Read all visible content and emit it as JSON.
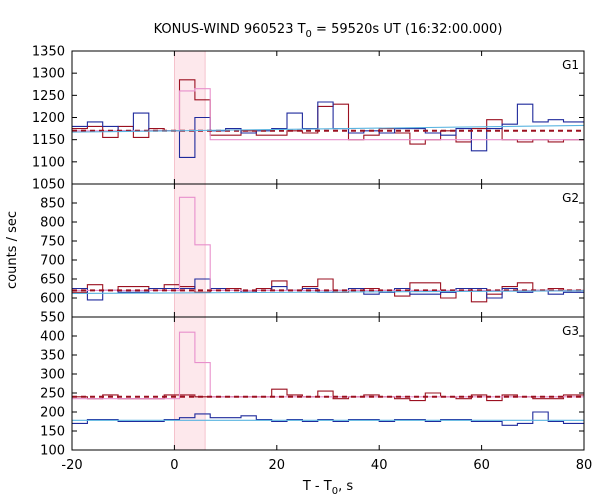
{
  "chart_data": {
    "type": "line",
    "title_main": "KONUS-WIND 960523 T",
    "title_sub": "0",
    "title_rest": " = 59520s UT (16:32:00.000)",
    "xlabel_main": "T - T",
    "xlabel_sub": "0",
    "xlabel_rest": ", s",
    "ylabel": "counts / sec",
    "xlim": [
      -20,
      80
    ],
    "x_ticks": [
      "-20",
      "0",
      "20",
      "40",
      "60",
      "80"
    ],
    "x_tick_values": [
      -20,
      0,
      20,
      40,
      60,
      80
    ],
    "bin_edges": [
      -20,
      -17,
      -14,
      -11,
      -8,
      -5,
      -2,
      1,
      4,
      7,
      10,
      13,
      16,
      19,
      22,
      25,
      28,
      31,
      34,
      37,
      40,
      43,
      46,
      49,
      52,
      55,
      58,
      61,
      64,
      67,
      70,
      73,
      76,
      80
    ],
    "highlight": {
      "x_range": [
        0,
        6
      ],
      "color": "#fde8ec"
    },
    "colors": {
      "red": "#9b1020",
      "blue": "#1f2a9c",
      "pink": "#e890cc",
      "cyan": "#5ab4e0"
    },
    "panels": [
      {
        "label": "G1",
        "ylim": [
          1050,
          1350
        ],
        "y_ticks": [
          "1050",
          "1100",
          "1150",
          "1200",
          "1250",
          "1300",
          "1350"
        ],
        "y_tick_values": [
          1050,
          1100,
          1150,
          1200,
          1250,
          1300,
          1350
        ],
        "series": [
          {
            "color": "red",
            "values": [
              1175,
              1180,
              1155,
              1180,
              1155,
              1175,
              1170,
              1285,
              1240,
              1160,
              1160,
              1170,
              1160,
              1160,
              1170,
              1165,
              1225,
              1230,
              1150,
              1160,
              1175,
              1165,
              1140,
              1150,
              1170,
              1145,
              1175,
              1195,
              1150,
              1145,
              1150,
              1145,
              1150
            ]
          },
          {
            "color": "blue",
            "values": [
              1180,
              1190,
              1180,
              1170,
              1210,
              1170,
              1170,
              1110,
              1200,
              1170,
              1175,
              1165,
              1170,
              1175,
              1210,
              1175,
              1235,
              1175,
              1165,
              1170,
              1165,
              1175,
              1175,
              1165,
              1160,
              1175,
              1125,
              1175,
              1185,
              1230,
              1190,
              1195,
              1190
            ]
          },
          {
            "color": "pink",
            "values": [
              1170,
              1170,
              1170,
              1170,
              1170,
              1170,
              1170,
              1260,
              1265,
              1150,
              1150,
              1150,
              1150,
              1150,
              1150,
              1150,
              1150,
              1150,
              1150,
              1150,
              1150,
              1150,
              1150,
              1150,
              1150,
              1150,
              1150,
              1150,
              1150,
              1150,
              1150,
              1150,
              1150
            ]
          }
        ],
        "fits": [
          {
            "color": "red",
            "dashed": true,
            "y": [
              1170,
              1170
            ]
          },
          {
            "color": "cyan",
            "dashed": false,
            "y": [
              1167,
              1182
            ]
          }
        ]
      },
      {
        "label": "G2",
        "ylim": [
          550,
          900
        ],
        "y_ticks": [
          "550",
          "600",
          "650",
          "700",
          "750",
          "800",
          "850"
        ],
        "y_tick_values": [
          550,
          600,
          650,
          700,
          750,
          800,
          850
        ],
        "series": [
          {
            "color": "red",
            "values": [
              615,
              635,
              620,
              630,
              630,
              620,
              635,
              630,
              615,
              620,
              625,
              615,
              625,
              645,
              620,
              630,
              650,
              615,
              620,
              625,
              620,
              605,
              640,
              640,
              600,
              625,
              590,
              610,
              630,
              640,
              620,
              625,
              620
            ]
          },
          {
            "color": "blue",
            "values": [
              625,
              595,
              620,
              615,
              615,
              625,
              625,
              625,
              650,
              625,
              620,
              615,
              620,
              630,
              620,
              625,
              615,
              620,
              625,
              610,
              615,
              625,
              610,
              610,
              615,
              625,
              625,
              600,
              625,
              615,
              620,
              610,
              615
            ]
          },
          {
            "color": "pink",
            "values": [
              620,
              620,
              620,
              620,
              620,
              620,
              620,
              865,
              740,
              620,
              620,
              620,
              620,
              620,
              620,
              620,
              620,
              620,
              620,
              620,
              620,
              620,
              620,
              620,
              620,
              620,
              620,
              620,
              620,
              620,
              620,
              620,
              620
            ]
          }
        ],
        "fits": [
          {
            "color": "red",
            "dashed": true,
            "y": [
              620,
              620
            ]
          },
          {
            "color": "cyan",
            "dashed": false,
            "y": [
              612,
              619
            ]
          }
        ]
      },
      {
        "label": "G3",
        "ylim": [
          100,
          450
        ],
        "y_ticks": [
          "100",
          "150",
          "200",
          "250",
          "300",
          "350",
          "400"
        ],
        "y_tick_values": [
          100,
          150,
          200,
          250,
          300,
          350,
          400
        ],
        "series": [
          {
            "color": "red",
            "values": [
              240,
              235,
              245,
              235,
              235,
              235,
              245,
              245,
              240,
              240,
              240,
              240,
              240,
              260,
              245,
              240,
              255,
              235,
              240,
              245,
              240,
              235,
              230,
              250,
              240,
              235,
              245,
              230,
              245,
              240,
              235,
              235,
              245
            ]
          },
          {
            "color": "blue",
            "values": [
              170,
              180,
              180,
              175,
              175,
              175,
              180,
              185,
              195,
              185,
              185,
              190,
              180,
              175,
              180,
              175,
              180,
              175,
              180,
              180,
              175,
              180,
              180,
              175,
              180,
              180,
              175,
              175,
              165,
              170,
              200,
              175,
              170
            ]
          },
          {
            "color": "pink",
            "values": [
              235,
              235,
              235,
              235,
              235,
              235,
              235,
              410,
              330,
              240,
              240,
              240,
              240,
              240,
              240,
              240,
              240,
              240,
              240,
              240,
              240,
              240,
              240,
              240,
              240,
              240,
              240,
              240,
              240,
              240,
              240,
              240,
              240
            ]
          }
        ],
        "fits": [
          {
            "color": "red",
            "dashed": true,
            "y": [
              240,
              240
            ]
          },
          {
            "color": "cyan",
            "dashed": false,
            "y": [
              178,
              178
            ]
          }
        ]
      }
    ]
  }
}
